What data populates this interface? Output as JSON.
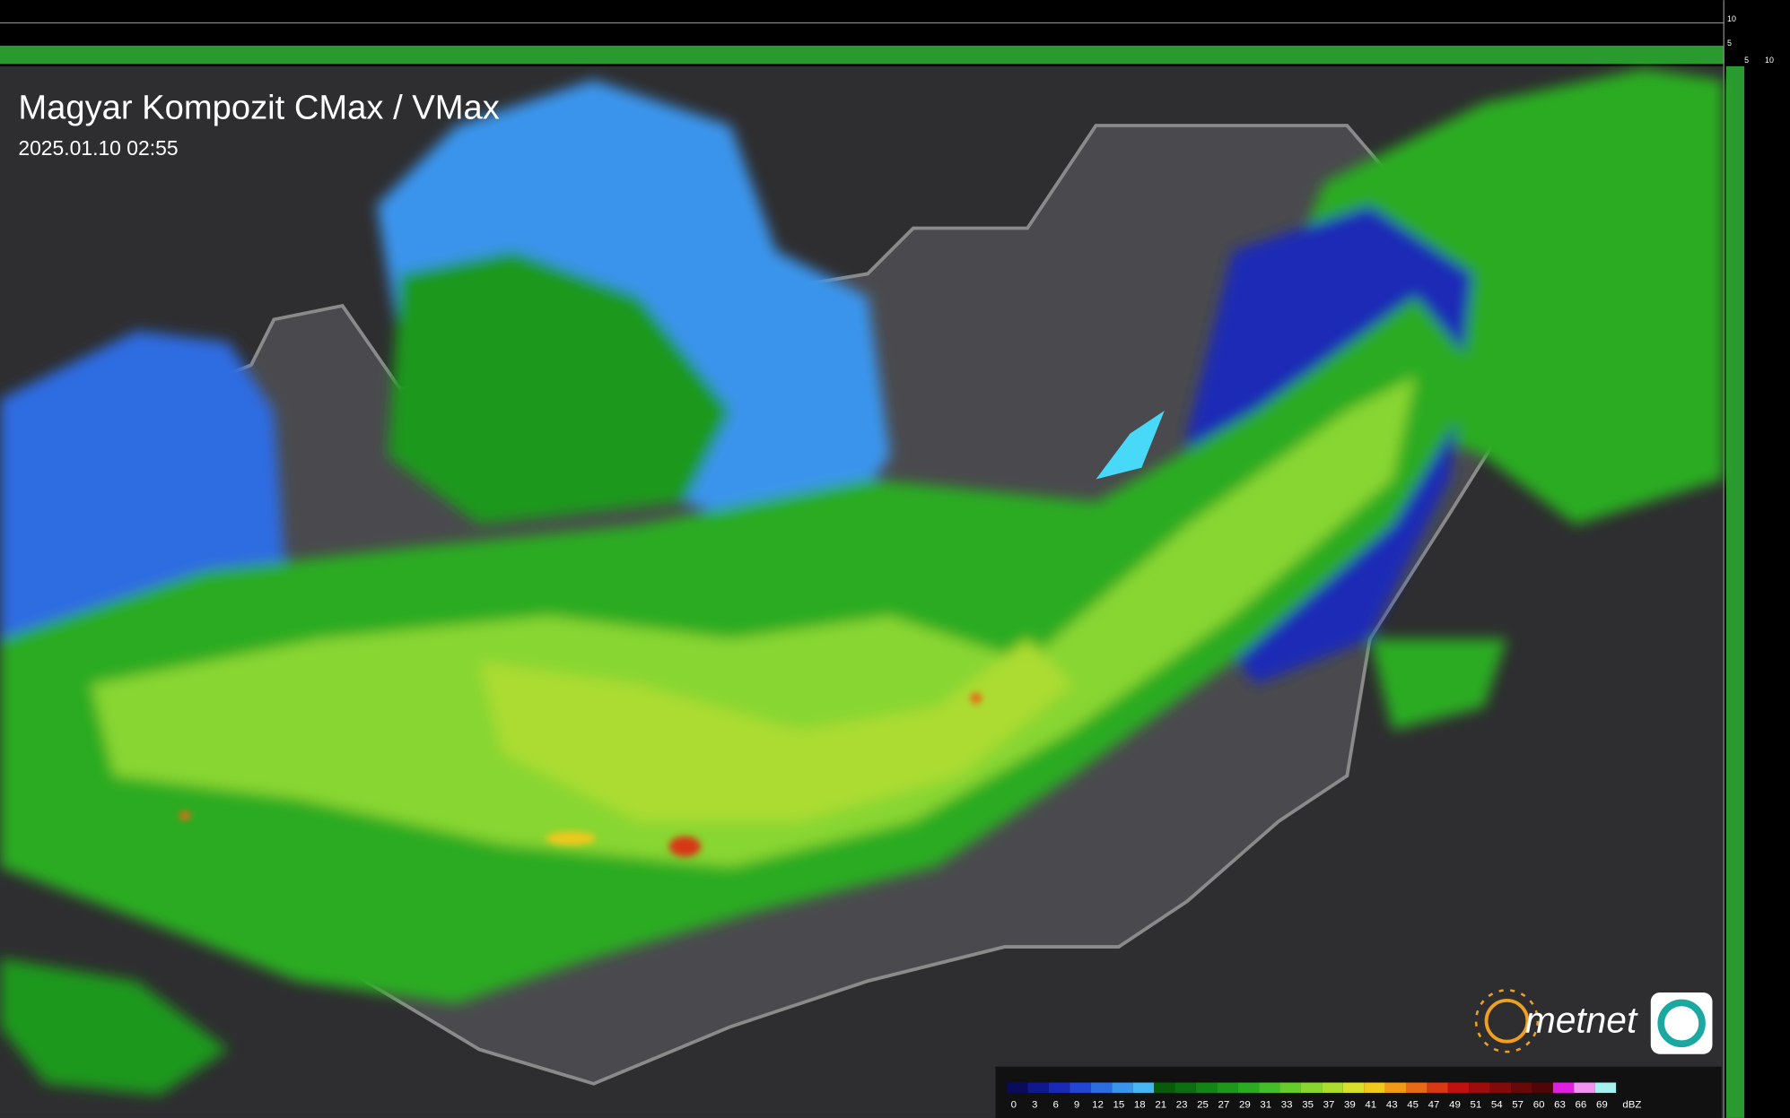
{
  "header": {
    "title": "Magyar Kompozit CMax / VMax",
    "timestamp": "2025.01.10 02:55"
  },
  "logo": {
    "text": "metnet"
  },
  "side_scale": {
    "vertical_ticks": [
      "10",
      "5"
    ],
    "horizontal_ticks": [
      "5",
      "10"
    ]
  },
  "legend": {
    "unit": "dBZ",
    "items": [
      {
        "value": 0,
        "color": "#0b0b5c"
      },
      {
        "value": 3,
        "color": "#10188e"
      },
      {
        "value": 6,
        "color": "#1a2ab6"
      },
      {
        "value": 9,
        "color": "#2346d2"
      },
      {
        "value": 12,
        "color": "#2e6ce2"
      },
      {
        "value": 15,
        "color": "#3b94ec"
      },
      {
        "value": 18,
        "color": "#48b6f2"
      },
      {
        "value": 21,
        "color": "#0a5a0c"
      },
      {
        "value": 23,
        "color": "#0e6e12"
      },
      {
        "value": 25,
        "color": "#138416"
      },
      {
        "value": 27,
        "color": "#1d981c"
      },
      {
        "value": 29,
        "color": "#2bab22"
      },
      {
        "value": 31,
        "color": "#45bd28"
      },
      {
        "value": 33,
        "color": "#66cc2c"
      },
      {
        "value": 35,
        "color": "#88d630"
      },
      {
        "value": 37,
        "color": "#acdc30"
      },
      {
        "value": 39,
        "color": "#d8e02c"
      },
      {
        "value": 41,
        "color": "#f0c81e"
      },
      {
        "value": 43,
        "color": "#f09a18"
      },
      {
        "value": 45,
        "color": "#e86a14"
      },
      {
        "value": 47,
        "color": "#d83812"
      },
      {
        "value": 49,
        "color": "#c01010"
      },
      {
        "value": 51,
        "color": "#a00c0c"
      },
      {
        "value": 54,
        "color": "#840a0a"
      },
      {
        "value": 57,
        "color": "#680808"
      },
      {
        "value": 60,
        "color": "#500606"
      },
      {
        "value": 63,
        "color": "#e020e0"
      },
      {
        "value": 66,
        "color": "#f094f0"
      },
      {
        "value": 69,
        "color": "#a6f0f0"
      }
    ]
  }
}
